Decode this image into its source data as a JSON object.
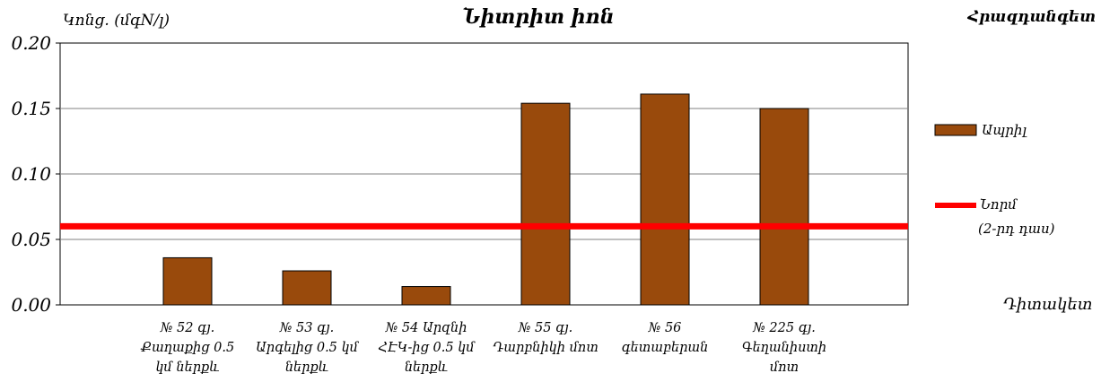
{
  "chart_data": {
    "type": "bar",
    "title": "Նիտրիտ իոն",
    "ylabel": "Կոնց. (մգN/լ)",
    "xlabel": "Դիտակետ",
    "legend_title": "Հրազդանգետ",
    "ylim": [
      0,
      0.2
    ],
    "yticks": [
      "0.00",
      "0.05",
      "0.10",
      "0.15",
      "0.20"
    ],
    "grid": true,
    "legend_position": "right",
    "categories": [
      [
        "№ 52 գյ.",
        "Քաղաքից 0.5",
        "կմ ներքև"
      ],
      [
        "№ 53 գյ.",
        "Արգելից  0.5 կմ",
        "ներքև"
      ],
      [
        "№ 54 Արզնի",
        "ՀԷԿ-ից 0.5 կմ",
        "ներքև"
      ],
      [
        "№ 55 գյ.",
        "Դարբնիկի  մոտ"
      ],
      [
        "№ 56",
        "գետաբերան"
      ],
      [
        "№ 225 գյ.",
        "Գեղանիստի",
        "մոտ"
      ]
    ],
    "series": [
      {
        "name": "Ապրիլ",
        "values": [
          0.036,
          0.026,
          0.014,
          0.154,
          0.161,
          0.15
        ],
        "color": "#994A0C"
      }
    ],
    "reference_line": {
      "name": "Նորմ",
      "note": "(2-րդ դաս)",
      "value": 0.06,
      "color": "#FF0000"
    }
  }
}
